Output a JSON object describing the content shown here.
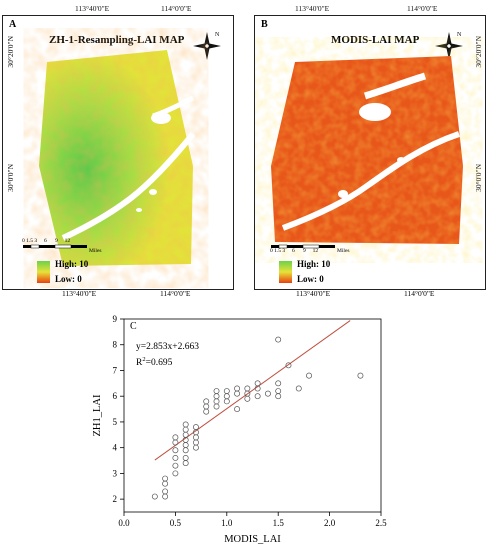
{
  "map_a": {
    "letter": "A",
    "title": "ZH-1-Resampling-LAI MAP",
    "top_lon_1": "113°40'0\"E",
    "top_lon_2": "114°0'0\"E",
    "bottom_lon_1": "113°40'0\"E",
    "bottom_lon_2": "114°0'0\"E",
    "left_lat_1": "30°20'0\"N",
    "left_lat_2": "30°0'0\"N",
    "scale_ticks": [
      "0",
      "1.5",
      "3",
      "6",
      "9",
      "12"
    ],
    "scale_unit": "Miles",
    "legend_high": "High:  10",
    "legend_low": "Low:  0"
  },
  "map_b": {
    "letter": "B",
    "title": "MODIS-LAI MAP",
    "top_lon_1": "113°40'0\"E",
    "top_lon_2": "114°0'0\"E",
    "bottom_lon_1": "113°40'0\"E",
    "bottom_lon_2": "114°0'0\"E",
    "right_lat_1": "30°20'0\"N",
    "right_lat_2": "30°0'0\"N",
    "scale_ticks": [
      "0",
      "1.5",
      "3",
      "6",
      "9",
      "12"
    ],
    "scale_unit": "Miles",
    "legend_high": "High:  10",
    "legend_low": "Low:  0"
  },
  "north_label": "N",
  "colors": {
    "legend_high": "#6cd14a",
    "legend_low": "#e8400f",
    "fit_line": "#c05040"
  },
  "chart_data": {
    "type": "scatter",
    "panel_letter": "C",
    "xlabel": "MODIS_LAI",
    "ylabel": "ZH1_LAI",
    "xlim": [
      0,
      2.5
    ],
    "ylim": [
      1.5,
      9
    ],
    "xticks": [
      "0.0",
      "0.5",
      "1.0",
      "1.5",
      "2.0",
      "2.5"
    ],
    "yticks": [
      "2",
      "3",
      "4",
      "5",
      "6",
      "7",
      "8",
      "9"
    ],
    "equation": "y=2.853x+2.663",
    "r2_label": "R",
    "r2_sup": "2",
    "r2_value": "=0.695",
    "fit": {
      "slope": 2.853,
      "intercept": 2.663,
      "x_start": 0.3,
      "x_end": 2.2
    },
    "points": [
      [
        0.3,
        2.1
      ],
      [
        0.4,
        2.1
      ],
      [
        0.4,
        2.3
      ],
      [
        0.4,
        2.6
      ],
      [
        0.4,
        2.8
      ],
      [
        0.5,
        3.0
      ],
      [
        0.5,
        3.3
      ],
      [
        0.5,
        3.6
      ],
      [
        0.5,
        3.9
      ],
      [
        0.5,
        4.2
      ],
      [
        0.5,
        4.4
      ],
      [
        0.6,
        3.4
      ],
      [
        0.6,
        3.6
      ],
      [
        0.6,
        3.9
      ],
      [
        0.6,
        4.1
      ],
      [
        0.6,
        4.3
      ],
      [
        0.6,
        4.5
      ],
      [
        0.6,
        4.7
      ],
      [
        0.6,
        4.9
      ],
      [
        0.7,
        4.0
      ],
      [
        0.7,
        4.2
      ],
      [
        0.7,
        4.4
      ],
      [
        0.7,
        4.6
      ],
      [
        0.7,
        4.8
      ],
      [
        0.8,
        5.4
      ],
      [
        0.8,
        5.6
      ],
      [
        0.8,
        5.8
      ],
      [
        0.9,
        5.6
      ],
      [
        0.9,
        5.8
      ],
      [
        0.9,
        6.0
      ],
      [
        0.9,
        6.2
      ],
      [
        1.0,
        5.8
      ],
      [
        1.0,
        6.0
      ],
      [
        1.0,
        6.2
      ],
      [
        1.1,
        5.5
      ],
      [
        1.1,
        6.1
      ],
      [
        1.1,
        6.3
      ],
      [
        1.2,
        5.9
      ],
      [
        1.2,
        6.1
      ],
      [
        1.2,
        6.3
      ],
      [
        1.3,
        6.0
      ],
      [
        1.3,
        6.3
      ],
      [
        1.3,
        6.5
      ],
      [
        1.4,
        6.1
      ],
      [
        1.5,
        6.0
      ],
      [
        1.5,
        6.2
      ],
      [
        1.5,
        6.5
      ],
      [
        1.5,
        8.2
      ],
      [
        1.6,
        7.2
      ],
      [
        1.7,
        6.3
      ],
      [
        1.8,
        6.8
      ],
      [
        2.3,
        6.8
      ]
    ]
  }
}
